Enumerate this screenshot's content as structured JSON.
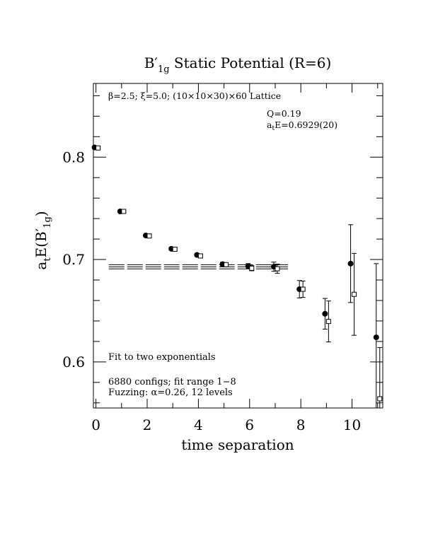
{
  "chart_data": {
    "type": "scatter",
    "title": "B′1g Static Potential (R=6)",
    "title_main": "B",
    "title_prime": "′",
    "title_sub": "1g",
    "title_rest": " Static Potential (R=6)",
    "xlabel": "time separation",
    "ylabel_prefix": "a",
    "ylabel_t": "t",
    "ylabel_E": "E(B",
    "ylabel_prime": "′",
    "ylabel_sub": "1g",
    "ylabel_close": ")",
    "xlim": [
      -0.1,
      11.2
    ],
    "ylim": [
      0.555,
      0.872
    ],
    "x_ticks": [
      0,
      2,
      4,
      6,
      8,
      10
    ],
    "x_tick_labels": [
      "0",
      "2",
      "4",
      "6",
      "8",
      "10"
    ],
    "y_ticks": [
      0.6,
      0.7,
      0.8
    ],
    "y_tick_labels": [
      "0.6",
      "0.7",
      "0.8"
    ],
    "grid": false,
    "annotations": {
      "lattice": "β=2.5; ξ=5.0; (10×10×30)×60 Lattice",
      "q_value": "Q=0.19",
      "energy_prefix": "a",
      "energy_sub": "t",
      "energy_value": "E=0.6929(20)",
      "fit_text": "Fit to two exponentials",
      "configs_text": "6880 configs; fit range 1−8",
      "fuzzing_text": "Fuzzing: α=0.26, 12 levels"
    },
    "fit": {
      "value": 0.6929,
      "error": 0.002,
      "x_range": [
        0.5,
        7.5
      ]
    },
    "series": [
      {
        "marker": "filled-circle",
        "x": [
          0,
          1,
          2,
          3,
          4,
          5,
          6,
          7,
          8,
          9,
          10,
          11
        ],
        "y": [
          0.8095,
          0.747,
          0.7235,
          0.7105,
          0.7045,
          0.6955,
          0.6935,
          0.693,
          0.671,
          0.647,
          0.696,
          0.624
        ],
        "err": [
          0.0008,
          0.001,
          0.0012,
          0.0013,
          0.0015,
          0.0018,
          0.0025,
          0.0045,
          0.0085,
          0.015,
          0.038,
          0.072
        ]
      },
      {
        "marker": "open-square",
        "x": [
          0,
          1,
          2,
          3,
          4,
          5,
          6,
          7,
          8,
          9,
          10,
          11
        ],
        "y": [
          0.809,
          0.747,
          0.723,
          0.71,
          0.7035,
          0.695,
          0.6915,
          0.691,
          0.671,
          0.6395,
          0.666,
          0.564
        ],
        "err": [
          0.0008,
          0.001,
          0.0012,
          0.0013,
          0.0015,
          0.0018,
          0.0025,
          0.0045,
          0.008,
          0.02,
          0.04,
          0.05
        ]
      }
    ]
  }
}
